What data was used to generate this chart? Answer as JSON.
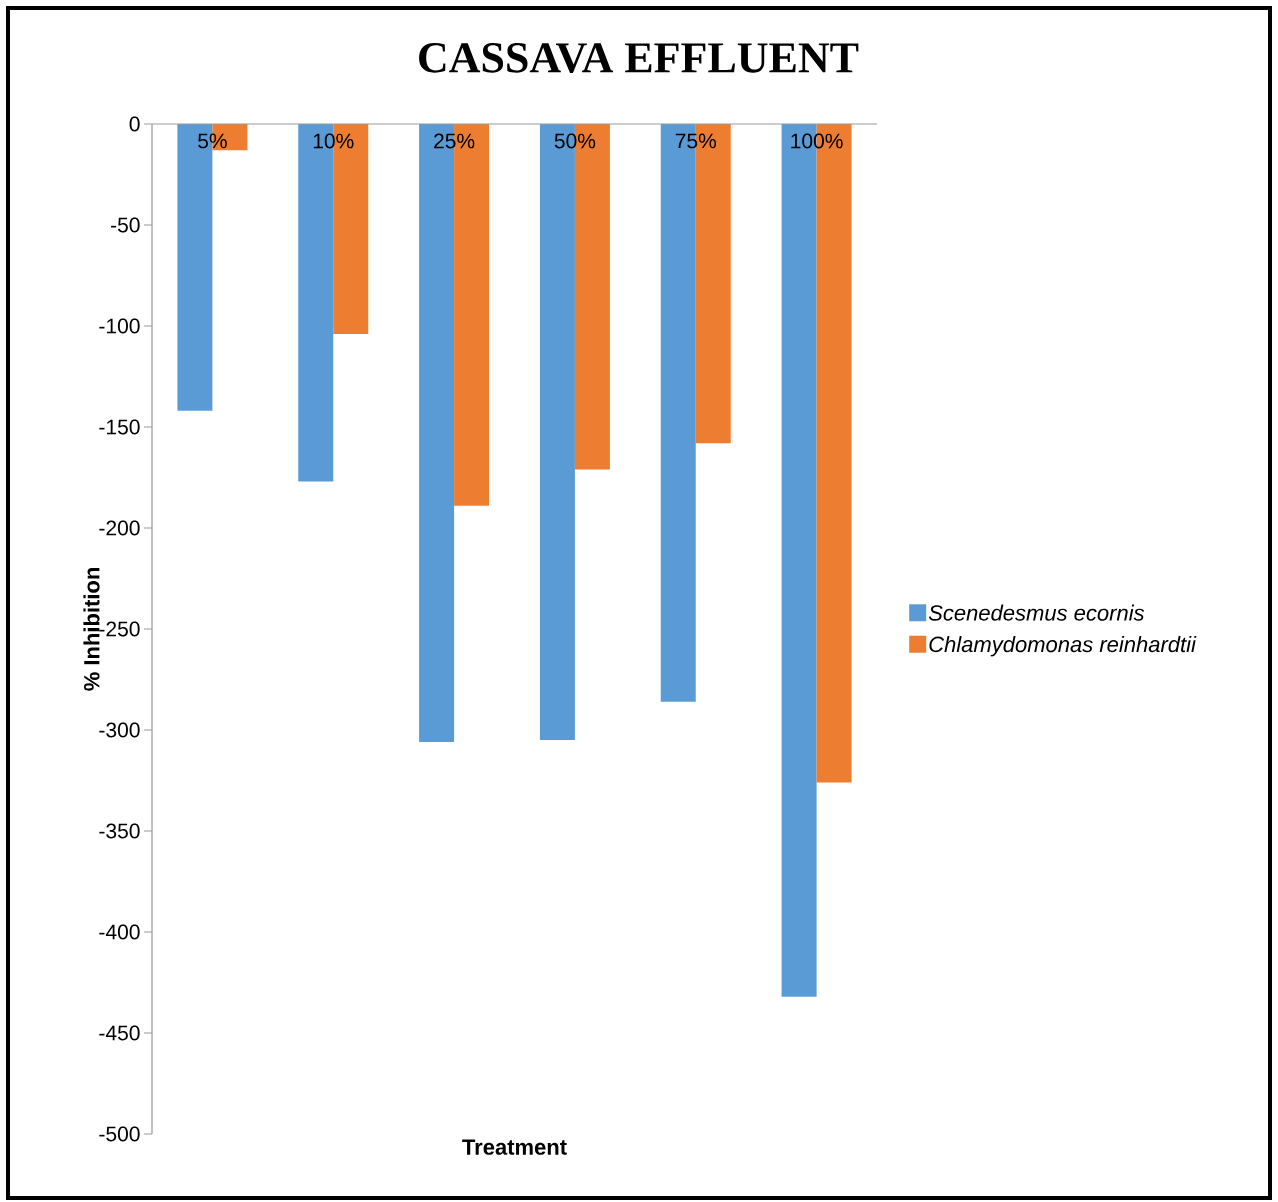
{
  "chart_data": {
    "type": "bar",
    "title": "CASSAVA EFFLUENT",
    "xlabel": "Treatment",
    "ylabel": "% Inhibition",
    "categories": [
      "5%",
      "10%",
      "25%",
      "50%",
      "75%",
      "100%"
    ],
    "series": [
      {
        "name": "Scenedesmus ecornis",
        "color": "#5b9bd5",
        "values": [
          -142,
          -177,
          -306,
          -305,
          -286,
          -432
        ]
      },
      {
        "name": "Chlamydomonas reinhardtii",
        "color": "#ed7d31",
        "values": [
          -13,
          -104,
          -189,
          -171,
          -158,
          -326
        ]
      }
    ],
    "ylim": [
      -500,
      0
    ],
    "yticks": [
      -500,
      -450,
      -400,
      -350,
      -300,
      -250,
      -200,
      -150,
      -100,
      -50,
      0
    ],
    "grid": false,
    "legend": "right"
  }
}
